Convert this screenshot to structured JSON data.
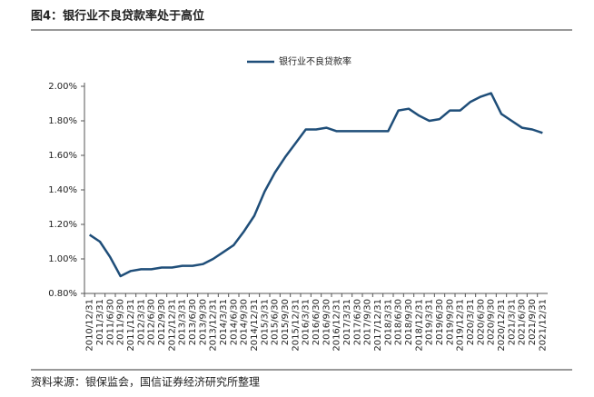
{
  "chart_data": {
    "type": "line",
    "title": "图4：银行业不良贷款率处于高位",
    "source": "资料来源：银保监会，国信证券经济研究所整理",
    "categories": [
      "2010/12/31",
      "2011/3/31",
      "2011/6/30",
      "2011/9/30",
      "2011/12/31",
      "2012/3/31",
      "2012/6/30",
      "2012/9/30",
      "2012/12/31",
      "2013/3/31",
      "2013/6/30",
      "2013/9/30",
      "2013/12/31",
      "2014/3/31",
      "2014/6/30",
      "2014/9/30",
      "2014/12/31",
      "2015/3/31",
      "2015/6/30",
      "2015/9/30",
      "2015/12/31",
      "2016/3/31",
      "2016/6/30",
      "2016/9/30",
      "2016/12/31",
      "2017/3/31",
      "2017/6/30",
      "2017/9/30",
      "2017/12/31",
      "2018/3/31",
      "2018/6/30",
      "2018/9/30",
      "2018/12/31",
      "2019/3/31",
      "2019/6/30",
      "2019/9/30",
      "2019/12/31",
      "2020/3/31",
      "2020/6/30",
      "2020/9/30",
      "2020/12/31",
      "2021/3/31",
      "2021/6/30",
      "2021/9/30",
      "2021/12/31"
    ],
    "series": [
      {
        "name": "银行业不良贷款率",
        "color": "#1f4e79",
        "values": [
          1.14,
          1.1,
          1.01,
          0.9,
          0.93,
          0.94,
          0.94,
          0.95,
          0.95,
          0.96,
          0.96,
          0.97,
          1.0,
          1.04,
          1.08,
          1.16,
          1.25,
          1.39,
          1.5,
          1.59,
          1.67,
          1.75,
          1.75,
          1.76,
          1.74,
          1.74,
          1.74,
          1.74,
          1.74,
          1.74,
          1.86,
          1.87,
          1.83,
          1.8,
          1.81,
          1.86,
          1.86,
          1.91,
          1.94,
          1.96,
          1.84,
          1.8,
          1.76,
          1.75,
          1.73
        ]
      }
    ],
    "ylim": [
      0.8,
      2.0
    ],
    "yticks": [
      {
        "value": 0.8,
        "label": "0.80%"
      },
      {
        "value": 1.0,
        "label": "1.00%"
      },
      {
        "value": 1.2,
        "label": "1.20%"
      },
      {
        "value": 1.4,
        "label": "1.40%"
      },
      {
        "value": 1.6,
        "label": "1.60%"
      },
      {
        "value": 1.8,
        "label": "1.80%"
      },
      {
        "value": 2.0,
        "label": "2.00%"
      }
    ],
    "legend": "top"
  }
}
